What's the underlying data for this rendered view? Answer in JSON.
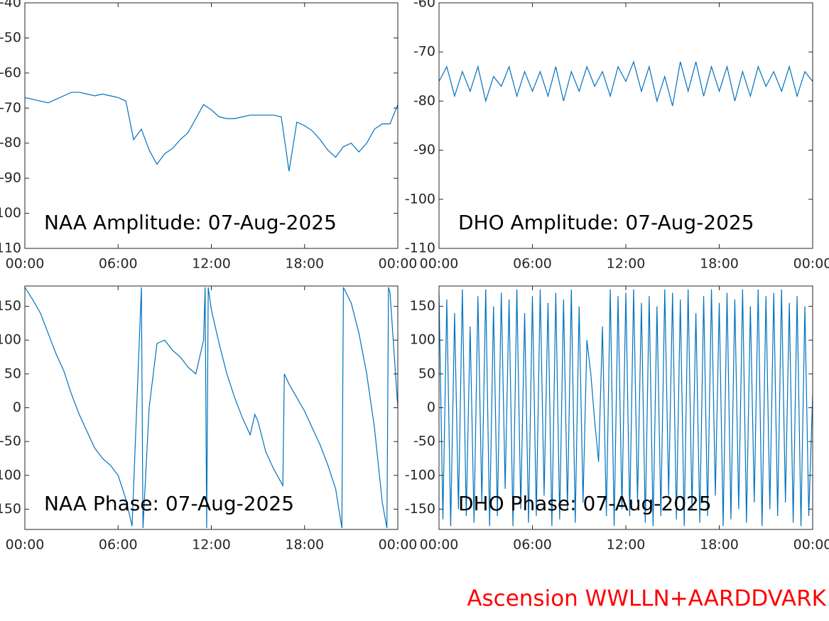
{
  "chart_data": [
    {
      "type": "line",
      "title": "NAA Amplitude: 07-Aug-2025",
      "x": [
        0,
        0.5,
        1,
        1.5,
        2,
        2.5,
        3,
        3.5,
        4,
        4.5,
        5,
        5.5,
        6,
        6.5,
        7,
        7.5,
        8,
        8.5,
        9,
        9.5,
        10,
        10.5,
        11,
        11.5,
        12,
        12.5,
        13,
        13.5,
        14,
        14.5,
        15,
        15.5,
        16,
        16.5,
        17,
        17.5,
        18,
        18.5,
        19,
        19.5,
        20,
        20.5,
        21,
        21.5,
        22,
        22.5,
        23,
        23.5,
        24
      ],
      "values": [
        -67,
        -67.5,
        -68,
        -68.5,
        -67.5,
        -66.5,
        -65.5,
        -65.5,
        -66,
        -66.5,
        -66,
        -66.5,
        -67,
        -68,
        -79,
        -76,
        -82,
        -86,
        -83,
        -81.5,
        -79,
        -77,
        -73,
        -69,
        -70.5,
        -72.5,
        -73,
        -73,
        -72.5,
        -72,
        -72,
        -72,
        -72,
        -72.5,
        -88,
        -74,
        -75,
        -76.5,
        -79,
        -82,
        -84,
        -81,
        -80,
        -82.5,
        -80,
        -76,
        -74.5,
        -74.5,
        -69
      ],
      "color": "#0072bd",
      "xlim": [
        0,
        24
      ],
      "xticks": [
        {
          "value": 0,
          "label": "00:00"
        },
        {
          "value": 6,
          "label": "06:00"
        },
        {
          "value": 12,
          "label": "12:00"
        },
        {
          "value": 18,
          "label": "18:00"
        },
        {
          "value": 24,
          "label": "00:00"
        }
      ],
      "ylim": [
        -110,
        -40
      ],
      "yticks": [
        -40,
        -50,
        -60,
        -70,
        -80,
        -90,
        -100,
        -110
      ]
    },
    {
      "type": "line",
      "title": "DHO Amplitude: 07-Aug-2025",
      "x": [
        0,
        0.5,
        1,
        1.5,
        2,
        2.5,
        3,
        3.5,
        4,
        4.5,
        5,
        5.5,
        6,
        6.5,
        7,
        7.5,
        8,
        8.5,
        9,
        9.5,
        10,
        10.5,
        11,
        11.5,
        12,
        12.5,
        13,
        13.5,
        14,
        14.5,
        15,
        15.5,
        16,
        16.5,
        17,
        17.5,
        18,
        18.5,
        19,
        19.5,
        20,
        20.5,
        21,
        21.5,
        22,
        22.5,
        23,
        23.5,
        24
      ],
      "values": [
        -76,
        -73,
        -79,
        -74,
        -78,
        -73,
        -80,
        -75,
        -77,
        -73,
        -79,
        -74,
        -78,
        -74,
        -79,
        -73,
        -80,
        -74,
        -78,
        -73,
        -77,
        -74,
        -79,
        -73,
        -76,
        -72,
        -78,
        -73,
        -80,
        -75,
        -81,
        -72,
        -78,
        -72,
        -79,
        -73,
        -78,
        -73,
        -80,
        -74,
        -79,
        -73,
        -77,
        -74,
        -78,
        -73,
        -79,
        -74,
        -76
      ],
      "color": "#0072bd",
      "xlim": [
        0,
        24
      ],
      "xticks": [
        {
          "value": 0,
          "label": "00:00"
        },
        {
          "value": 6,
          "label": "06:00"
        },
        {
          "value": 12,
          "label": "12:00"
        },
        {
          "value": 18,
          "label": "18:00"
        },
        {
          "value": 24,
          "label": "00:00"
        }
      ],
      "ylim": [
        -110,
        -60
      ],
      "yticks": [
        -60,
        -70,
        -80,
        -90,
        -100,
        -110
      ]
    },
    {
      "type": "line",
      "title": "NAA Phase: 07-Aug-2025",
      "x": [
        0,
        0.5,
        1,
        1.5,
        2,
        2.5,
        3,
        3.5,
        4,
        4.5,
        5,
        5.5,
        6,
        6.5,
        6.9,
        7.5,
        7.6,
        8,
        8.5,
        9,
        9.5,
        10,
        10.5,
        11,
        11.5,
        11.6,
        11.7,
        11.8,
        12,
        12.5,
        13,
        13.5,
        14,
        14.5,
        14.8,
        15,
        15.5,
        16,
        16.6,
        16.7,
        17,
        17.5,
        18,
        18.5,
        19,
        19.5,
        20,
        20.4,
        20.5,
        21,
        21.5,
        22,
        22.5,
        23,
        23.3,
        23.4,
        23.5,
        24
      ],
      "values": [
        178,
        160,
        140,
        110,
        80,
        55,
        20,
        -10,
        -35,
        -60,
        -75,
        -85,
        -100,
        -135,
        -175,
        178,
        -178,
        0,
        95,
        100,
        85,
        75,
        60,
        50,
        100,
        178,
        -178,
        178,
        145,
        95,
        50,
        15,
        -15,
        -40,
        -10,
        -20,
        -65,
        -90,
        -115,
        50,
        35,
        15,
        -5,
        -30,
        -55,
        -85,
        -120,
        -178,
        178,
        155,
        110,
        50,
        -30,
        -140,
        -178,
        178,
        170,
        0
      ],
      "color": "#0072bd",
      "xlim": [
        0,
        24
      ],
      "xticks": [
        {
          "value": 0,
          "label": "00:00"
        },
        {
          "value": 6,
          "label": "06:00"
        },
        {
          "value": 12,
          "label": "12:00"
        },
        {
          "value": 18,
          "label": "18:00"
        },
        {
          "value": 24,
          "label": "00:00"
        }
      ],
      "ylim": [
        -180,
        180
      ],
      "yticks": [
        150,
        100,
        50,
        0,
        -50,
        -100,
        -150
      ]
    },
    {
      "type": "line",
      "title": "DHO Phase: 07-Aug-2025",
      "x": [
        0,
        0.25,
        0.5,
        0.75,
        1,
        1.25,
        1.5,
        1.75,
        2,
        2.25,
        2.5,
        2.75,
        3,
        3.25,
        3.5,
        3.75,
        4,
        4.25,
        4.5,
        4.75,
        5,
        5.25,
        5.5,
        5.75,
        6,
        6.25,
        6.5,
        6.75,
        7,
        7.25,
        7.5,
        7.75,
        8,
        8.25,
        8.5,
        8.75,
        9,
        9.25,
        9.5,
        9.75,
        10,
        10.25,
        10.5,
        10.75,
        11,
        11.25,
        11.5,
        11.75,
        12,
        12.25,
        12.5,
        12.75,
        13,
        13.25,
        13.5,
        13.75,
        14,
        14.25,
        14.5,
        14.75,
        15,
        15.25,
        15.5,
        15.75,
        16,
        16.25,
        16.5,
        16.75,
        17,
        17.25,
        17.5,
        17.75,
        18,
        18.25,
        18.5,
        18.75,
        19,
        19.25,
        19.5,
        19.75,
        20,
        20.25,
        20.5,
        20.75,
        21,
        21.25,
        21.5,
        21.75,
        22,
        22.25,
        22.5,
        22.75,
        23,
        23.25,
        23.5,
        23.75,
        24
      ],
      "values": [
        170,
        -165,
        160,
        -175,
        140,
        -150,
        175,
        -160,
        120,
        -170,
        165,
        -140,
        175,
        -175,
        150,
        -160,
        170,
        -120,
        160,
        -175,
        175,
        -150,
        140,
        -170,
        165,
        -160,
        175,
        -130,
        155,
        -175,
        170,
        -165,
        160,
        -150,
        175,
        -170,
        150,
        -140,
        100,
        50,
        -20,
        -80,
        120,
        -160,
        175,
        -175,
        165,
        -150,
        170,
        -160,
        175,
        -140,
        155,
        -170,
        165,
        -175,
        150,
        -160,
        175,
        -130,
        170,
        -165,
        160,
        -175,
        175,
        -150,
        140,
        -170,
        165,
        -160,
        175,
        -130,
        155,
        -175,
        170,
        -165,
        160,
        -150,
        175,
        -170,
        150,
        -140,
        175,
        -175,
        165,
        -150,
        170,
        -160,
        175,
        -140,
        155,
        -170,
        165,
        -175,
        150,
        -160,
        20
      ],
      "color": "#0072bd",
      "xlim": [
        0,
        24
      ],
      "xticks": [
        {
          "value": 0,
          "label": "00:00"
        },
        {
          "value": 6,
          "label": "06:00"
        },
        {
          "value": 12,
          "label": "12:00"
        },
        {
          "value": 18,
          "label": "18:00"
        },
        {
          "value": 24,
          "label": "00:00"
        }
      ],
      "ylim": [
        -180,
        180
      ],
      "yticks": [
        150,
        100,
        50,
        0,
        -50,
        -100,
        -150
      ]
    }
  ],
  "footer": "Ascension WWLLN+AARDDVARK"
}
